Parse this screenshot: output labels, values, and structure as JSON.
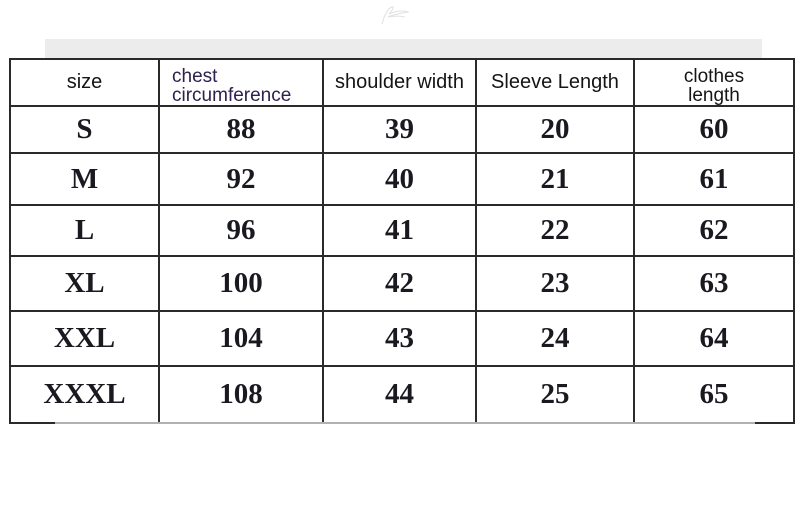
{
  "chart_data": {
    "type": "table",
    "columns": [
      "size",
      "chest circumference",
      "shoulder width",
      "Sleeve Length",
      "clothes length"
    ],
    "header_lines": [
      [
        "size"
      ],
      [
        "chest",
        "circumference"
      ],
      [
        "shoulder width"
      ],
      [
        "Sleeve Length"
      ],
      [
        "clothes",
        "length"
      ]
    ],
    "rows": [
      [
        "S",
        "88",
        "39",
        "20",
        "60"
      ],
      [
        "M",
        "92",
        "40",
        "21",
        "61"
      ],
      [
        "L",
        "96",
        "41",
        "22",
        "62"
      ],
      [
        "XL",
        "100",
        "42",
        "23",
        "63"
      ],
      [
        "XXL",
        "104",
        "43",
        "24",
        "64"
      ],
      [
        "XXXL",
        "108",
        "44",
        "25",
        "65"
      ]
    ]
  },
  "colors": {
    "border": "#2a2a2a",
    "header_text": "#151515",
    "chest_header_text": "#2e2050",
    "body_text": "#191920",
    "top_strip": "#ececec",
    "shadow_line": "#c9c9c9",
    "scribble": "#d9d9d9"
  }
}
